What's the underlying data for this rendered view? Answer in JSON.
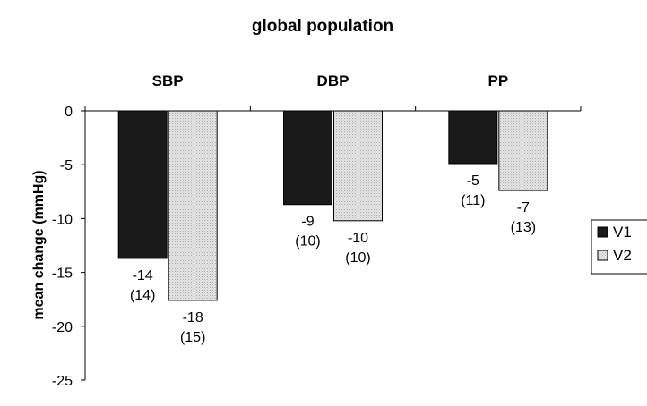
{
  "chart_data": {
    "type": "bar",
    "title": "global population",
    "xlabel": "",
    "ylabel": "mean change (mmHg)",
    "categories": [
      "SBP",
      "DBP",
      "PP"
    ],
    "series": [
      {
        "name": "V1",
        "color": "#1a1a1a",
        "values": [
          -13.7,
          -8.7,
          -4.9
        ],
        "labels": [
          [
            "-14",
            "(14)"
          ],
          [
            "-9",
            "(10)"
          ],
          [
            "-5",
            "(11)"
          ]
        ]
      },
      {
        "name": "V2",
        "color": "#d9d9d9",
        "values": [
          -17.6,
          -10.2,
          -7.4
        ],
        "labels": [
          [
            "-18",
            "(15)"
          ],
          [
            "-10",
            "(10)"
          ],
          [
            "-7",
            "(13)"
          ]
        ]
      }
    ],
    "ylim": [
      -25,
      0
    ],
    "yticks": [
      "0",
      "-5",
      "-10",
      "-15",
      "-20",
      "-25"
    ],
    "grid": false,
    "legend": "right"
  }
}
